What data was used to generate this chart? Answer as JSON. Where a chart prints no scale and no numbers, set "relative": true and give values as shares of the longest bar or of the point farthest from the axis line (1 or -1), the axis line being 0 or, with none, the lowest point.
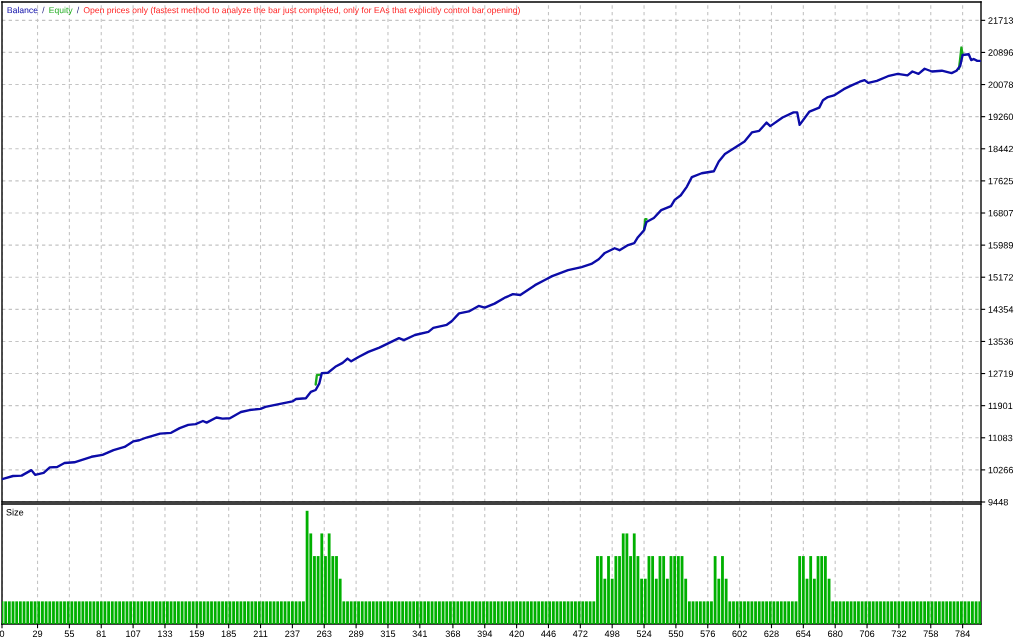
{
  "chart_data": [
    {
      "type": "line",
      "subtitle": "Open prices only (fastest method to analyze the bar just completed, only for EAs that explicitly control bar opening)",
      "annotations": [
        "/",
        "/"
      ],
      "x": [
        0,
        9,
        16,
        24,
        27,
        34,
        39,
        45,
        51,
        59,
        73,
        82,
        91,
        100,
        107,
        112,
        118,
        129,
        138,
        145,
        152,
        158,
        164,
        167,
        175,
        180,
        186,
        195,
        202,
        211,
        215,
        226,
        237,
        240,
        248,
        252,
        256,
        259,
        261,
        266,
        272,
        278,
        282,
        285,
        291,
        299,
        308,
        316,
        324,
        328,
        337,
        348,
        352,
        363,
        367,
        373,
        381,
        389,
        394,
        402,
        411,
        417,
        423,
        435,
        443,
        449,
        462,
        473,
        481,
        487,
        492,
        500,
        504,
        511,
        516,
        519,
        524,
        526,
        532,
        538,
        546,
        549,
        554,
        559,
        563,
        571,
        581,
        585,
        590,
        599,
        606,
        612,
        618,
        624,
        627,
        637,
        646,
        649,
        651,
        659,
        667,
        670,
        674,
        679,
        687,
        693,
        700,
        704,
        707,
        714,
        723,
        731,
        739,
        743,
        748,
        753,
        759,
        767,
        775,
        779,
        782,
        784,
        789,
        791,
        793,
        796,
        798
      ],
      "series": [
        {
          "name": "Balance",
          "color": "#0c0ca8",
          "values": [
            10030,
            10110,
            10120,
            10260,
            10140,
            10190,
            10330,
            10340,
            10440,
            10460,
            10600,
            10650,
            10770,
            10850,
            10990,
            11020,
            11090,
            11190,
            11210,
            11330,
            11410,
            11430,
            11510,
            11470,
            11600,
            11570,
            11580,
            11740,
            11790,
            11820,
            11870,
            11940,
            12010,
            12070,
            12090,
            12250,
            12300,
            12470,
            12730,
            12740,
            12890,
            12990,
            13100,
            13030,
            13140,
            13270,
            13380,
            13500,
            13620,
            13570,
            13700,
            13780,
            13880,
            13960,
            14050,
            14250,
            14300,
            14440,
            14400,
            14500,
            14660,
            14740,
            14720,
            14970,
            15100,
            15200,
            15350,
            15430,
            15510,
            15630,
            15790,
            15910,
            15860,
            15990,
            16040,
            16190,
            16370,
            16580,
            16680,
            16880,
            16980,
            17140,
            17260,
            17480,
            17720,
            17820,
            17870,
            18120,
            18310,
            18490,
            18630,
            18860,
            18900,
            19110,
            19020,
            19240,
            19370,
            19370,
            19050,
            19390,
            19490,
            19680,
            19760,
            19800,
            19960,
            20050,
            20150,
            20190,
            20120,
            20170,
            20290,
            20350,
            20310,
            20410,
            20350,
            20480,
            20410,
            20430,
            20370,
            20430,
            20550,
            20830,
            20850,
            20700,
            20730,
            20680,
            20680
          ]
        },
        {
          "name": "Equity",
          "color": "#1aaa1a",
          "x": [
            256,
            257,
            260,
            400,
            524,
            525,
            526,
            700,
            781,
            782,
            783,
            784
          ],
          "values": [
            12440,
            12680,
            12690,
            null,
            16370,
            16650,
            16650,
            null,
            20480,
            20730,
            21020,
            20830
          ]
        }
      ],
      "xlim": [
        0,
        799
      ],
      "xticks": [
        0,
        29,
        55,
        81,
        107,
        133,
        159,
        185,
        211,
        237,
        263,
        289,
        315,
        341,
        368,
        394,
        420,
        446,
        472,
        498,
        524,
        550,
        576,
        602,
        628,
        654,
        680,
        706,
        732,
        758,
        784
      ],
      "ylim": [
        9448,
        22180
      ],
      "yticks": [
        21713,
        20896,
        20078,
        19260,
        18442,
        17625,
        16807,
        15989,
        15172,
        14354,
        13536,
        12719,
        11901,
        11083,
        10266,
        9448
      ],
      "grid": true,
      "legend": "top left",
      "tick_labels": "y"
    },
    {
      "type": "bar",
      "title": "Size",
      "relative": true,
      "color": "#00b000",
      "x": [
        0,
        3,
        6,
        9,
        12,
        15,
        18,
        21,
        24,
        27,
        30,
        33,
        36,
        39,
        42,
        45,
        48,
        51,
        54,
        57,
        60,
        63,
        66,
        69,
        72,
        75,
        78,
        81,
        84,
        87,
        90,
        93,
        96,
        99,
        102,
        105,
        108,
        111,
        114,
        117,
        120,
        123,
        126,
        129,
        132,
        135,
        138,
        141,
        144,
        147,
        150,
        153,
        156,
        159,
        162,
        165,
        168,
        171,
        174,
        177,
        180,
        183,
        186,
        189,
        192,
        195,
        198,
        201,
        204,
        207,
        210,
        213,
        216,
        219,
        222,
        225,
        228,
        231,
        234,
        237,
        240,
        243,
        246,
        249,
        252,
        255,
        258,
        261,
        264,
        267,
        270,
        273,
        276,
        279,
        282,
        285,
        288,
        291,
        294,
        297,
        300,
        303,
        306,
        309,
        312,
        315,
        318,
        321,
        324,
        327,
        330,
        333,
        336,
        339,
        342,
        345,
        348,
        351,
        354,
        357,
        360,
        363,
        366,
        369,
        372,
        375,
        378,
        381,
        384,
        387,
        390,
        393,
        396,
        399,
        402,
        405,
        408,
        411,
        414,
        417,
        420,
        423,
        426,
        429,
        432,
        435,
        438,
        441,
        444,
        447,
        450,
        453,
        456,
        459,
        462,
        465,
        468,
        471,
        474,
        477,
        480,
        483,
        486,
        489,
        492,
        495,
        498,
        501,
        504,
        507,
        510,
        513,
        516,
        519,
        522,
        525,
        528,
        531,
        534,
        537,
        540,
        543,
        546,
        549,
        552,
        555,
        558,
        561,
        564,
        567,
        570,
        573,
        576,
        579,
        582,
        585,
        588,
        591,
        594,
        597,
        600,
        603,
        606,
        609,
        612,
        615,
        618,
        621,
        624,
        627,
        630,
        633,
        636,
        639,
        642,
        645,
        648,
        651,
        654,
        657,
        660,
        663,
        666,
        669,
        672,
        675,
        678,
        681,
        684,
        687,
        690,
        693,
        696,
        699,
        702,
        705,
        708,
        711,
        714,
        717,
        720,
        723,
        726,
        729,
        732,
        735,
        738,
        741,
        744,
        747,
        750,
        753,
        756,
        759,
        762,
        765,
        768,
        771,
        774,
        777,
        780,
        783,
        786,
        789,
        792,
        795,
        798
      ],
      "values": [
        0.2,
        0.2,
        0.2,
        0.2,
        0.2,
        0.2,
        0.2,
        0.2,
        0.2,
        0.2,
        0.2,
        0.2,
        0.2,
        0.2,
        0.2,
        0.2,
        0.2,
        0.2,
        0.2,
        0.2,
        0.2,
        0.2,
        0.2,
        0.2,
        0.2,
        0.2,
        0.2,
        0.2,
        0.2,
        0.2,
        0.2,
        0.2,
        0.2,
        0.2,
        0.2,
        0.2,
        0.2,
        0.2,
        0.2,
        0.2,
        0.2,
        0.2,
        0.2,
        0.2,
        0.2,
        0.2,
        0.2,
        0.2,
        0.2,
        0.2,
        0.2,
        0.2,
        0.2,
        0.2,
        0.2,
        0.2,
        0.2,
        0.2,
        0.2,
        0.2,
        0.2,
        0.2,
        0.2,
        0.2,
        0.2,
        0.2,
        0.2,
        0.2,
        0.2,
        0.2,
        0.2,
        0.2,
        0.2,
        0.2,
        0.2,
        0.2,
        0.2,
        0.2,
        0.2,
        0.2,
        0.2,
        0.2,
        0.2,
        1,
        0.8,
        0.6,
        0.6,
        0.8,
        0.6,
        0.8,
        0.6,
        0.6,
        0.4,
        0.2,
        0.2,
        0.2,
        0.2,
        0.2,
        0.2,
        0.2,
        0.2,
        0.2,
        0.2,
        0.2,
        0.2,
        0.2,
        0.2,
        0.2,
        0.2,
        0.2,
        0.2,
        0.2,
        0.2,
        0.2,
        0.2,
        0.2,
        0.2,
        0.2,
        0.2,
        0.2,
        0.2,
        0.2,
        0.2,
        0.2,
        0.2,
        0.2,
        0.2,
        0.2,
        0.2,
        0.2,
        0.2,
        0.2,
        0.2,
        0.2,
        0.2,
        0.2,
        0.2,
        0.2,
        0.2,
        0.2,
        0.2,
        0.2,
        0.2,
        0.2,
        0.2,
        0.2,
        0.2,
        0.2,
        0.2,
        0.2,
        0.2,
        0.2,
        0.2,
        0.2,
        0.2,
        0.2,
        0.2,
        0.2,
        0.2,
        0.2,
        0.2,
        0.2,
        0.6,
        0.6,
        0.4,
        0.6,
        0.4,
        0.6,
        0.6,
        0.8,
        0.8,
        0.6,
        0.8,
        0.6,
        0.4,
        0.4,
        0.6,
        0.6,
        0.4,
        0.6,
        0.6,
        0.4,
        0.6,
        0.6,
        0.6,
        0.6,
        0.4,
        0.2,
        0.2,
        0.2,
        0.2,
        0.2,
        0.2,
        0.2,
        0.6,
        0.4,
        0.6,
        0.4,
        0.2,
        0.2,
        0.2,
        0.2,
        0.2,
        0.2,
        0.2,
        0.2,
        0.2,
        0.2,
        0.2,
        0.2,
        0.2,
        0.2,
        0.2,
        0.2,
        0.2,
        0.2,
        0.2,
        0.6,
        0.6,
        0.4,
        0.6,
        0.4,
        0.6,
        0.6,
        0.6,
        0.4,
        0.2,
        0.2,
        0.2,
        0.2,
        0.2,
        0.2,
        0.2,
        0.2,
        0.2,
        0.2,
        0.2,
        0.2,
        0.2,
        0.2,
        0.2,
        0.2,
        0.2,
        0.2,
        0.2,
        0.2,
        0.2,
        0.2,
        0.2,
        0.2,
        0.2,
        0.2,
        0.2,
        0.2,
        0.2,
        0.2,
        0.2,
        0.2,
        0.2,
        0.2,
        0.2,
        0.2,
        0.2,
        0.2,
        0.2,
        0.2,
        0.2
      ],
      "xlim": [
        0,
        799
      ],
      "xticks": [
        0,
        29,
        55,
        81,
        107,
        133,
        159,
        185,
        211,
        237,
        263,
        289,
        315,
        341,
        368,
        394,
        420,
        446,
        472,
        498,
        524,
        550,
        576,
        602,
        628,
        654,
        680,
        706,
        732,
        758,
        784
      ],
      "grid": "x",
      "tick_labels": "x"
    }
  ]
}
